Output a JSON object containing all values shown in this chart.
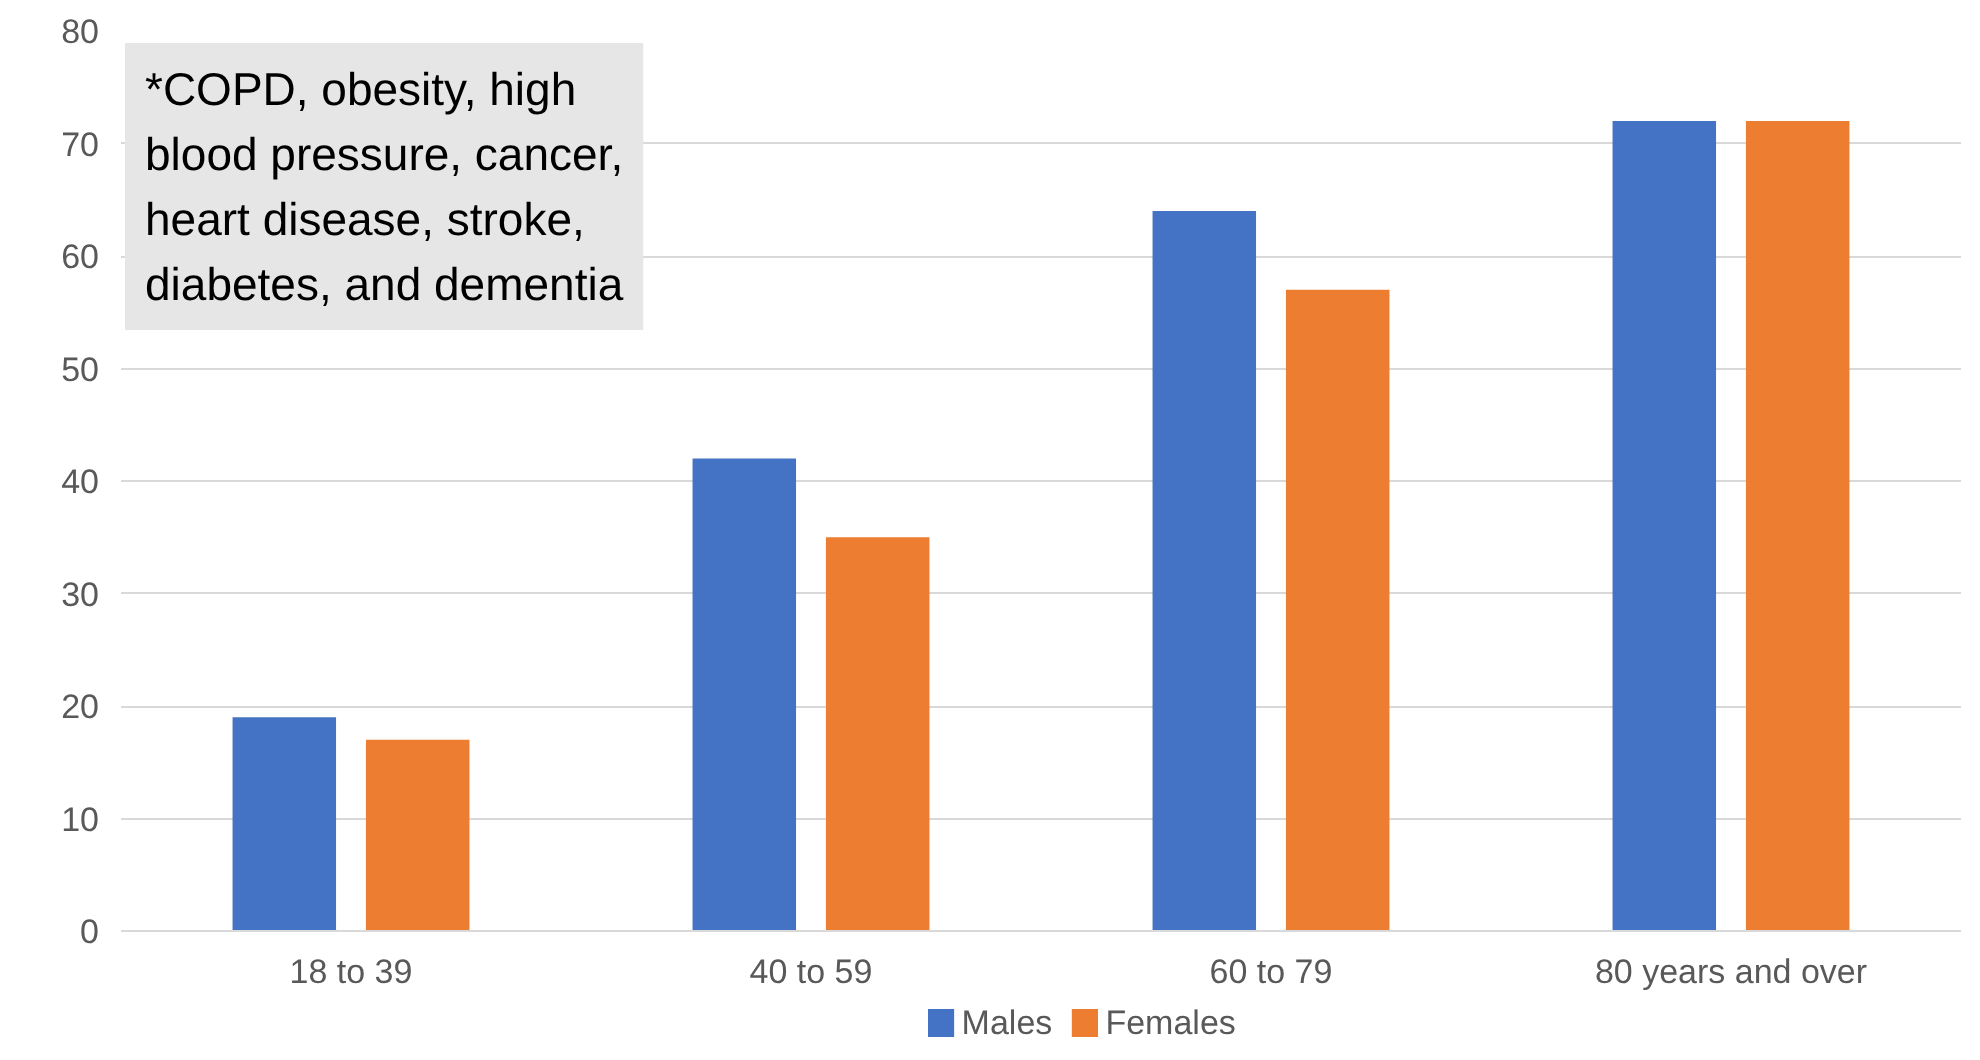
{
  "chart_data": {
    "type": "bar",
    "categories": [
      "18 to 39",
      "40 to 59",
      "60 to 79",
      "80 years and over"
    ],
    "series": [
      {
        "name": "Males",
        "color": "#4472c4",
        "values": [
          19,
          42,
          64,
          72
        ]
      },
      {
        "name": "Females",
        "color": "#ed7d31",
        "values": [
          17,
          35,
          57,
          72
        ]
      }
    ],
    "ylim": [
      0,
      80
    ],
    "yticks": [
      0,
      10,
      20,
      30,
      40,
      50,
      60,
      70,
      80
    ],
    "grid": "y",
    "legend": "bottom",
    "annotations": [
      "*COPD, obesity, high\nblood pressure, cancer,\nheart disease, stroke,\ndiabetes, and dementia"
    ]
  }
}
